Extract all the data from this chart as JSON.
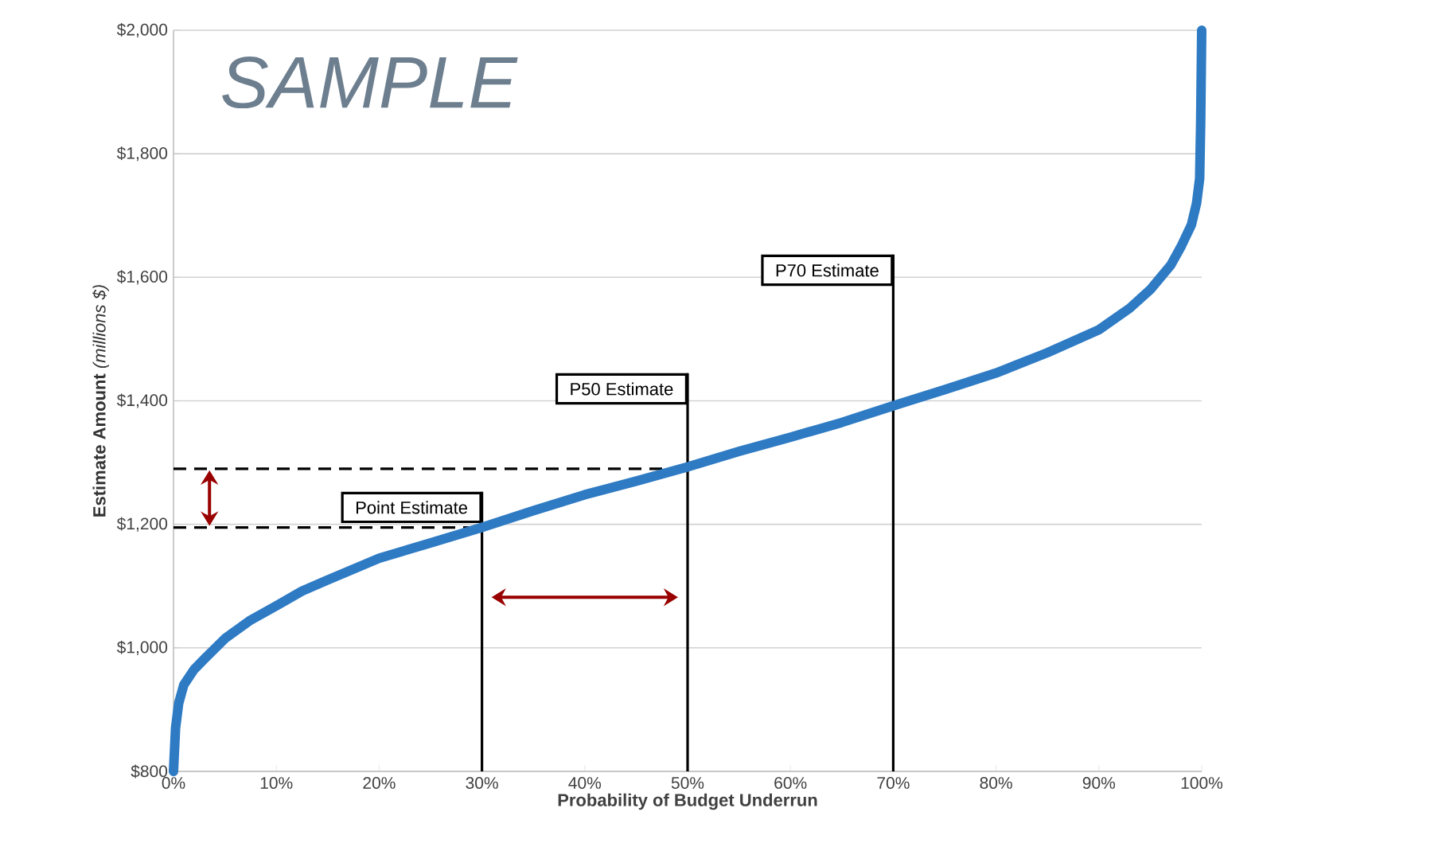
{
  "chart_data": {
    "type": "line",
    "xlabel": "Probability of Budget Underrun",
    "ylabel": "**Estimate Amount** *(millions $)*",
    "annotations": [
      "SAMPLE"
    ],
    "x": [
      0,
      0.2,
      0.5,
      1,
      2,
      3,
      5,
      7.5,
      10,
      12.5,
      15,
      20,
      25,
      30,
      35,
      40,
      45,
      50,
      55,
      60,
      65,
      70,
      75,
      80,
      85,
      90,
      93,
      95,
      97,
      98,
      99,
      99.5,
      99.8,
      99.9,
      100
    ],
    "series": [
      {
        "color": "#2e7bc4",
        "values": [
          800,
          870,
          910,
          940,
          965,
          982,
          1015,
          1045,
          1068,
          1092,
          1110,
          1145,
          1170,
          1195,
          1222,
          1248,
          1270,
          1293,
          1318,
          1341,
          1365,
          1392,
          1418,
          1445,
          1478,
          1515,
          1550,
          1580,
          1620,
          1650,
          1685,
          1720,
          1760,
          1850,
          2000
        ]
      }
    ],
    "xlim": [
      0,
      100
    ],
    "xticks": [
      {
        "value": 0,
        "label": "0%"
      },
      {
        "value": 10,
        "label": "10%"
      },
      {
        "value": 20,
        "label": "20%"
      },
      {
        "value": 30,
        "label": "30%"
      },
      {
        "value": 40,
        "label": "40%"
      },
      {
        "value": 50,
        "label": "50%"
      },
      {
        "value": 60,
        "label": "60%"
      },
      {
        "value": 70,
        "label": "70%"
      },
      {
        "value": 80,
        "label": "80%"
      },
      {
        "value": 90,
        "label": "90%"
      },
      {
        "value": 100,
        "label": "100%"
      }
    ],
    "ylim": [
      800,
      2000
    ],
    "yticks": [
      {
        "value": 800,
        "label": "$800"
      },
      {
        "value": 1000,
        "label": "$1,000"
      },
      {
        "value": 1200,
        "label": "$1,200"
      },
      {
        "value": 1400,
        "label": "$1,400"
      },
      {
        "value": 1600,
        "label": "$1,600"
      },
      {
        "value": 1800,
        "label": "$1,800"
      },
      {
        "value": 2000,
        "label": "$2,000"
      }
    ],
    "ref_lines": [
      {
        "axis": "x",
        "value": 30,
        "label": "Point Estimate"
      },
      {
        "axis": "x",
        "value": 50,
        "label": "P50 Estimate"
      },
      {
        "axis": "x",
        "value": 70,
        "label": "P70 Estimate"
      },
      {
        "axis": "y",
        "value": 1195,
        "line_style": "dashed"
      },
      {
        "axis": "y",
        "value": 1290,
        "line_style": "dashed"
      }
    ],
    "grid": "y",
    "marker": "none",
    "line_style": "solid"
  }
}
